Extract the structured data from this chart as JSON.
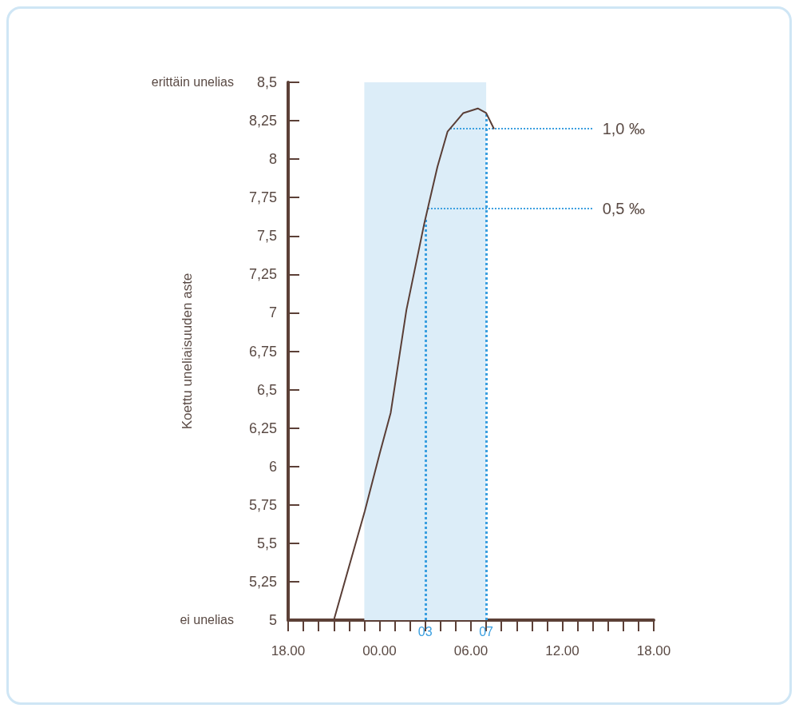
{
  "chart_data": {
    "type": "line",
    "ylabel": "Koettu uneliaisuuden aste",
    "x": [
      "2000-01-01T21:00",
      "2000-01-01T22:00",
      "2000-01-01T23:02",
      "2000-01-02T00:00",
      "2000-01-02T00:44",
      "2000-01-02T01:46",
      "2000-01-02T02:56",
      "2000-01-02T03:48",
      "2000-01-02T04:28",
      "2000-01-02T05:30",
      "2000-01-02T06:27",
      "2000-01-02T07:00",
      "2000-01-02T07:30"
    ],
    "series": [
      {
        "color": "#5a3e36",
        "values": [
          5,
          5.35,
          5.71,
          6.08,
          6.35,
          7.02,
          7.58,
          7.95,
          8.18,
          8.3,
          8.33,
          8.3,
          8.2
        ]
      }
    ],
    "xlim": [
      "2000-01-01T18:00",
      "2000-01-02T18:00"
    ],
    "xticks": [
      {
        "value": "2000-01-01T18:00",
        "label": "18.00"
      },
      {
        "value": "2000-01-01T19:00",
        "label": null
      },
      {
        "value": "2000-01-01T20:00",
        "label": null
      },
      {
        "value": "2000-01-01T21:00",
        "label": null
      },
      {
        "value": "2000-01-01T22:00",
        "label": null
      },
      {
        "value": "2000-01-01T23:00",
        "label": null
      },
      {
        "value": "2000-01-02T00:00",
        "label": "00.00"
      },
      {
        "value": "2000-01-02T01:00",
        "label": null
      },
      {
        "value": "2000-01-02T02:00",
        "label": null
      },
      {
        "value": "2000-01-02T03:00",
        "label": null
      },
      {
        "value": "2000-01-02T04:00",
        "label": null
      },
      {
        "value": "2000-01-02T05:00",
        "label": null
      },
      {
        "value": "2000-01-02T06:00",
        "label": "06.00"
      },
      {
        "value": "2000-01-02T07:00",
        "label": null
      },
      {
        "value": "2000-01-02T08:00",
        "label": null
      },
      {
        "value": "2000-01-02T09:00",
        "label": null
      },
      {
        "value": "2000-01-02T10:00",
        "label": null
      },
      {
        "value": "2000-01-02T11:00",
        "label": null
      },
      {
        "value": "2000-01-02T12:00",
        "label": "12.00"
      },
      {
        "value": "2000-01-02T13:00",
        "label": null
      },
      {
        "value": "2000-01-02T14:00",
        "label": null
      },
      {
        "value": "2000-01-02T15:00",
        "label": null
      },
      {
        "value": "2000-01-02T16:00",
        "label": null
      },
      {
        "value": "2000-01-02T17:00",
        "label": null
      },
      {
        "value": "2000-01-02T18:00",
        "label": "18.00"
      }
    ],
    "ylim": [
      5,
      8.5
    ],
    "yticks": [
      {
        "value": 5,
        "label": "5"
      },
      {
        "value": 5.25,
        "label": "5,25"
      },
      {
        "value": 5.5,
        "label": "5,5"
      },
      {
        "value": 5.75,
        "label": "5,75"
      },
      {
        "value": 6,
        "label": "6"
      },
      {
        "value": 6.25,
        "label": "6,25"
      },
      {
        "value": 6.5,
        "label": "6,5"
      },
      {
        "value": 6.75,
        "label": "6,75"
      },
      {
        "value": 7,
        "label": "7"
      },
      {
        "value": 7.25,
        "label": "7,25"
      },
      {
        "value": 7.5,
        "label": "7,5"
      },
      {
        "value": 7.75,
        "label": "7,75"
      },
      {
        "value": 8,
        "label": "8"
      },
      {
        "value": 8.25,
        "label": "8,25"
      },
      {
        "value": 8.5,
        "label": "8,5"
      }
    ],
    "ref_lines": [
      {
        "axis": "x",
        "value": "2000-01-02T03:00",
        "label": "03",
        "color": "#3a9fe0",
        "line_style": "dotted"
      },
      {
        "axis": "x",
        "value": "2000-01-02T07:00",
        "label": "07",
        "color": "#3a9fe0",
        "line_style": "dotted"
      },
      {
        "axis": "y",
        "value": 7.68,
        "label": "0,5 ‰",
        "color": "#3a9fe0",
        "line_style": "dotted"
      },
      {
        "axis": "y",
        "value": 8.2,
        "label": "1,0 ‰",
        "color": "#3a9fe0",
        "line_style": "dotted"
      }
    ],
    "bands": [
      {
        "axis": "x",
        "from": "2000-01-01T23:00",
        "to": "2000-01-02T07:00",
        "color": "#dcedf8"
      }
    ],
    "annotations": [
      "erittäin unelias",
      "ei unelias"
    ],
    "grid": false,
    "marker": "none",
    "line_style": "solid"
  }
}
